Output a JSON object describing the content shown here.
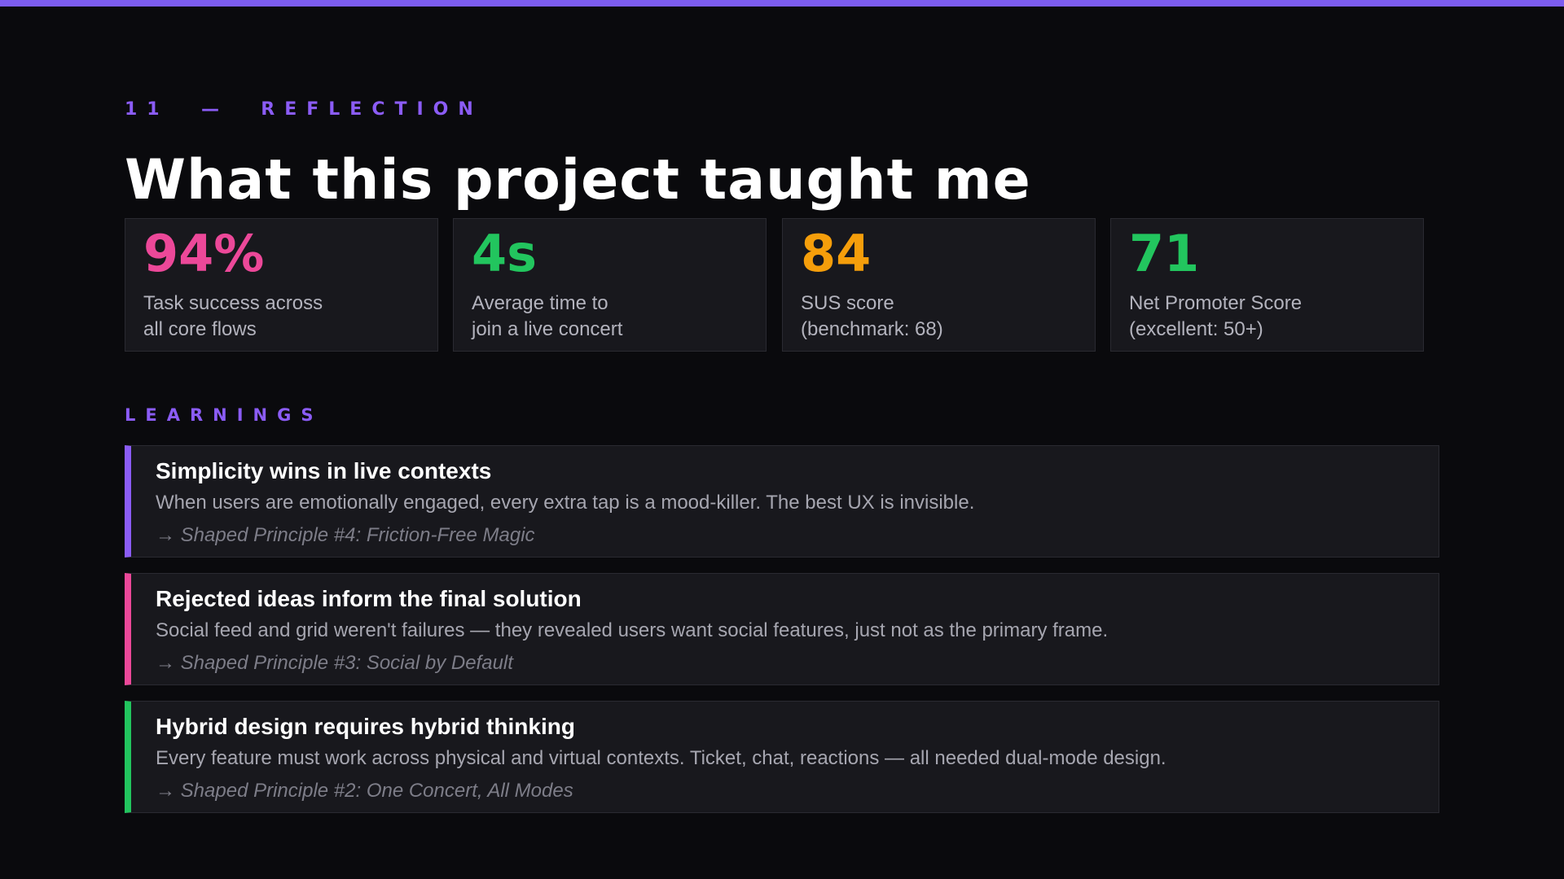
{
  "eyebrow": {
    "number": "11",
    "dash": "—",
    "label": "REFLECTION"
  },
  "title": "What this project taught me",
  "metrics": [
    {
      "value": "94%",
      "label_line1": "Task success across",
      "label_line2": "all core flows",
      "color": "#ec4899"
    },
    {
      "value": "4s",
      "label_line1": "Average time to",
      "label_line2": "join a live concert",
      "color": "#22c55e"
    },
    {
      "value": "84",
      "label_line1": "SUS score",
      "label_line2": "(benchmark: 68)",
      "color": "#f59e0b"
    },
    {
      "value": "71",
      "label_line1": "Net Promoter Score",
      "label_line2": "(excellent: 50+)",
      "color": "#22c55e"
    }
  ],
  "learnings_label": "LEARNINGS",
  "learnings": [
    {
      "title": "Simplicity wins in live contexts",
      "description": "When users are emotionally engaged, every extra tap is a mood-killer. The best UX is invisible.",
      "principle": "→ Shaped Principle #4: Friction-Free Magic",
      "accent": "#8b5cf6"
    },
    {
      "title": "Rejected ideas inform the final solution",
      "description": "Social feed and grid weren't failures — they revealed users want social features, just not as the primary frame.",
      "principle": "→ Shaped Principle #3: Social by Default",
      "accent": "#ec4899"
    },
    {
      "title": "Hybrid design requires hybrid thinking",
      "description": "Every feature must work across physical and virtual contexts. Ticket, chat, reactions — all needed dual-mode design.",
      "principle": "→ Shaped Principle #2: One Concert, All Modes",
      "accent": "#22c55e"
    }
  ]
}
